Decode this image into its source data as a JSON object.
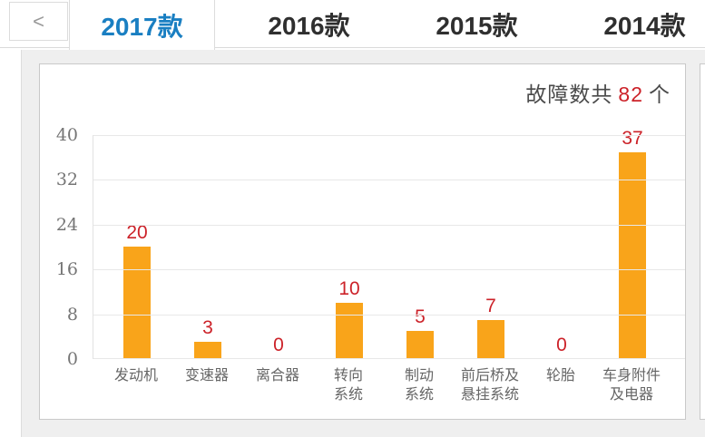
{
  "tabbar": {
    "prev_label": "<",
    "tabs": [
      {
        "label": "2017款",
        "active": true
      },
      {
        "label": "2016款",
        "active": false
      },
      {
        "label": "2015款",
        "active": false
      },
      {
        "label": "2014款",
        "active": false
      }
    ]
  },
  "chart": {
    "title_prefix": "故障数共",
    "total": "82",
    "title_suffix": "个"
  },
  "chart_data": {
    "type": "bar",
    "title": "故障数共 82 个",
    "categories": [
      "发动机",
      "变速器",
      "离合器",
      "转向\n系统",
      "制动\n系统",
      "前后桥及\n悬挂系统",
      "轮胎",
      "车身附件\n及电器"
    ],
    "values": [
      20,
      3,
      0,
      10,
      5,
      7,
      0,
      37
    ],
    "total_faults": 82,
    "xlabel": "",
    "ylabel": "",
    "ylim": [
      0,
      40
    ],
    "yticks": [
      0,
      8,
      16,
      24,
      32,
      40
    ],
    "grid": true,
    "legend_position": "none",
    "bar_color": "#f9a41a",
    "value_label_color": "#cc2229"
  },
  "colors": {
    "accent_blue": "#1a7fc2",
    "bar_orange": "#f9a41a",
    "value_red": "#cc2229",
    "content_bg": "#efefef",
    "panel_border": "#c9c9c9"
  }
}
